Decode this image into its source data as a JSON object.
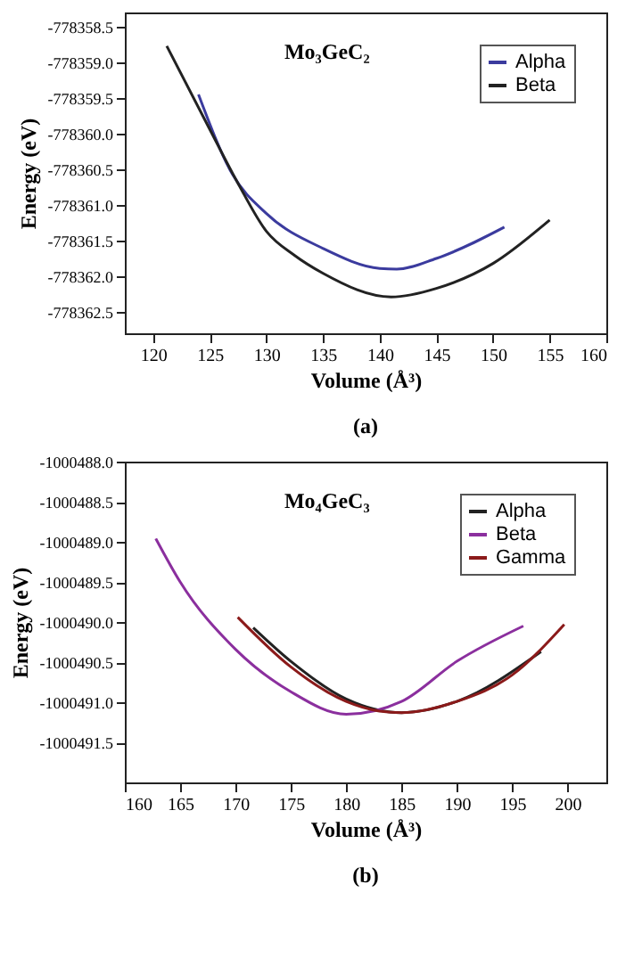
{
  "chart_data": [
    {
      "type": "line",
      "xlabel": "Volume (Å³)",
      "ylabel": "Energy (eV)",
      "annotations": [
        "Mo₃GeC₂",
        "(a)"
      ],
      "xlim": [
        117.5,
        160
      ],
      "xticks": [
        120,
        125,
        130,
        135,
        140,
        145,
        150,
        155,
        160
      ],
      "ylim": [
        -778362.8,
        -778358.3
      ],
      "yticks": [
        {
          "value": -778358.5,
          "label": "-778358.5"
        },
        {
          "value": -778359,
          "label": "-778359.0"
        },
        {
          "value": -778359.5,
          "label": "-778359.5"
        },
        {
          "value": -778360,
          "label": "-778360.0"
        },
        {
          "value": -778360.5,
          "label": "-778360.5"
        },
        {
          "value": -778361,
          "label": "-778361.0"
        },
        {
          "value": -778361.5,
          "label": "-778361.5"
        },
        {
          "value": -778362,
          "label": "-778362.0"
        },
        {
          "value": -778362.5,
          "label": "-778362.5"
        }
      ],
      "grid": false,
      "legend": "top right",
      "marker": "none",
      "line_style": "solid",
      "series": [
        {
          "name": "Alpha",
          "color": "#3b3b9e",
          "x": [
            124,
            127,
            130,
            135,
            140,
            141.5,
            145,
            151
          ],
          "values": [
            -778359.45,
            -778360.57,
            -778361.12,
            -778361.61,
            -778361.89,
            -778361.9,
            -778361.75,
            -778361.31
          ]
        },
        {
          "name": "Beta",
          "color": "#222222",
          "x": [
            121.2,
            125,
            127.5,
            130,
            132.5,
            135,
            141,
            145,
            150,
            155
          ],
          "values": [
            -778358.77,
            -778359.94,
            -778360.7,
            -778361.37,
            -778361.71,
            -778361.96,
            -778362.29,
            -778362.17,
            -778361.82,
            -778361.21
          ]
        }
      ]
    },
    {
      "type": "line",
      "xlabel": "Volume (Å³)",
      "ylabel": "Energy (eV)",
      "annotations": [
        "Mo₄GeC₃",
        "(b)"
      ],
      "xlim": [
        160,
        203.5
      ],
      "xticks": [
        160,
        165,
        170,
        175,
        180,
        185,
        190,
        195,
        200
      ],
      "ylim": [
        -1000492.0,
        -1000488.0
      ],
      "yticks": [
        {
          "value": -1000488,
          "label": "-1000488.0"
        },
        {
          "value": -1000488.5,
          "label": "-1000488.5"
        },
        {
          "value": -1000489,
          "label": "-1000489.0"
        },
        {
          "value": -1000489.5,
          "label": "-1000489.5"
        },
        {
          "value": -1000490,
          "label": "-1000490.0"
        },
        {
          "value": -1000490.5,
          "label": "-1000490.5"
        },
        {
          "value": -1000491,
          "label": "-1000491.0"
        },
        {
          "value": -1000491.5,
          "label": "-1000491.5"
        }
      ],
      "grid": false,
      "legend": "top right",
      "marker": "none",
      "line_style": "solid",
      "series": [
        {
          "name": "Alpha",
          "color": "#222222",
          "x": [
            171.6,
            175,
            180,
            185,
            190,
            197.6
          ],
          "values": [
            -1000490.07,
            -1000490.49,
            -1000490.96,
            -1000491.13,
            -1000490.99,
            -1000490.37
          ]
        },
        {
          "name": "Beta",
          "color": "#8b2f9e",
          "x": [
            162.8,
            165,
            170,
            175,
            180,
            185,
            190,
            196
          ],
          "values": [
            -1000488.96,
            -1000489.5,
            -1000490.34,
            -1000490.87,
            -1000491.15,
            -1000490.99,
            -1000490.49,
            -1000490.05
          ]
        },
        {
          "name": "Gamma",
          "color": "#8b1a1a",
          "x": [
            170.2,
            175,
            180,
            183,
            185,
            190,
            195,
            199.7
          ],
          "values": [
            -1000489.94,
            -1000490.56,
            -1000490.99,
            -1000491.11,
            -1000491.13,
            -1000490.99,
            -1000490.66,
            -1000490.03
          ]
        }
      ]
    }
  ]
}
